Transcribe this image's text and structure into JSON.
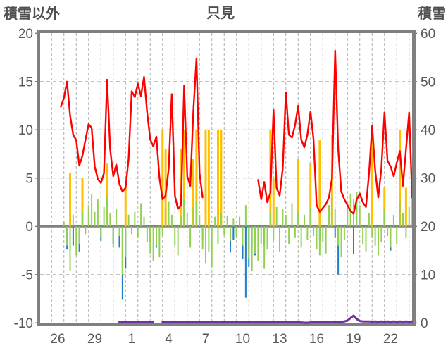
{
  "header": {
    "left_axis_title": "積雪以外",
    "station_title": "只見",
    "right_axis_title": "積雪"
  },
  "chart_data": {
    "type": "line",
    "description": "combo chart: red line + yellow/blue/green bars on left axis, purple snow-depth line on right axis; x in days, t=0 is 00:00 of day 26",
    "x_start": 0.75,
    "x_step": 0.25,
    "x_range": [
      -0.93,
      29.33
    ],
    "x_axis": {
      "tick_labels": [
        "26",
        "29",
        "1",
        "4",
        "7",
        "10",
        "13",
        "16",
        "19",
        "22"
      ],
      "tick_positions": [
        0.5,
        3.5,
        6.5,
        9.5,
        12.5,
        15.5,
        18.5,
        21.5,
        24.5,
        27.5
      ],
      "day_gridlines_from": 0,
      "day_gridlines_to": 29,
      "grid": "daily dashed vertical"
    },
    "left_axis": {
      "range": [
        -10,
        20
      ],
      "ticks": [
        20,
        15,
        10,
        5,
        0,
        -5,
        -10
      ],
      "dashed_gridlines_at": [
        15,
        10,
        5,
        -5
      ],
      "zero_line": "solid gray"
    },
    "right_axis": {
      "range": [
        0,
        60
      ],
      "ticks": [
        60,
        50,
        40,
        30,
        20,
        10,
        0
      ]
    },
    "colors": {
      "red": "#FF0000",
      "yellow": "#FFC000",
      "blue": "#1F7EC4",
      "green": "#92D050",
      "purple": "#7030A0",
      "frame": "#808080",
      "gridline": "#ADADAD",
      "text": "#595959"
    },
    "series": [
      {
        "name": "yellow-bars",
        "type": "bar",
        "axis": "left",
        "color": "#FFC000",
        "values": [
          0,
          0,
          0,
          5.5,
          0,
          0,
          0,
          5.0,
          0,
          0,
          0,
          0,
          0,
          0,
          0,
          6.5,
          0,
          0,
          0,
          0,
          0,
          4.0,
          0,
          0,
          0,
          0,
          0,
          0,
          0,
          0,
          0,
          0,
          0,
          10,
          8,
          0,
          0,
          0,
          0,
          8,
          10,
          0,
          0,
          7,
          10,
          0,
          0,
          10,
          10,
          0,
          0,
          10,
          10,
          0,
          0,
          0,
          0,
          0,
          0,
          0,
          0,
          0,
          0,
          0,
          0,
          0,
          0,
          0,
          10,
          5,
          0,
          0,
          0,
          0,
          0,
          0,
          0,
          7,
          0,
          0,
          0,
          6.5,
          0,
          0,
          9,
          0,
          0,
          0,
          9.5,
          0,
          0,
          0,
          0,
          0,
          0,
          0,
          0,
          0,
          0,
          0,
          0,
          10,
          0,
          0,
          0,
          4,
          0,
          0,
          0,
          0,
          10,
          0,
          4,
          0,
          0
        ]
      },
      {
        "name": "blue-bars",
        "type": "bar",
        "axis": "left",
        "color": "#1F7EC4",
        "values": [
          0,
          0,
          -2.4,
          -3.6,
          -2.0,
          0,
          -2.6,
          0,
          0,
          0,
          0,
          0,
          0,
          -1.5,
          0,
          0,
          0,
          -1.8,
          0,
          -2.2,
          -7.6,
          -4.4,
          0,
          0,
          0,
          0,
          0,
          0,
          0,
          -1.6,
          0,
          -2.2,
          0,
          0,
          0,
          0,
          0,
          0,
          0,
          0,
          0,
          0,
          0,
          0,
          0,
          0,
          -1.4,
          0,
          0,
          0,
          0,
          -1.2,
          0,
          0,
          0,
          -2.7,
          -1.4,
          -1.0,
          0,
          -3.4,
          -7.4,
          -4.2,
          -2.4,
          -3.0,
          0,
          0,
          -2.0,
          0,
          0,
          0,
          0,
          -1.6,
          0,
          0,
          0,
          0,
          0,
          0,
          0,
          0,
          0,
          0,
          0,
          0,
          -1.5,
          0,
          0,
          0,
          0,
          -1.2,
          -5.0,
          -2.5,
          0,
          0,
          0,
          -2.9,
          0,
          0,
          0,
          0,
          0,
          0,
          0,
          0,
          0,
          0,
          0,
          -2.5,
          0,
          0,
          0,
          0,
          0,
          0,
          0
        ]
      },
      {
        "name": "green-bars",
        "type": "bar",
        "axis": "left",
        "color": "#92D050",
        "values": [
          0,
          0.5,
          -2.0,
          -4.6,
          1.2,
          -3.0,
          -1.8,
          1.5,
          -0.8,
          2.2,
          3.3,
          1.5,
          2.8,
          -1.2,
          2.0,
          3.1,
          1.4,
          -2.2,
          1.8,
          -1.0,
          -5.0,
          -3.2,
          1.2,
          -0.8,
          1.5,
          -1.2,
          2.4,
          1.0,
          -1.6,
          -2.8,
          -3.6,
          -2.0,
          -3.2,
          -1.0,
          1.8,
          2.6,
          1.2,
          -2.0,
          -3.0,
          1.0,
          2.8,
          1.4,
          -2.2,
          2.0,
          2.6,
          1.2,
          -2.4,
          -3.8,
          -2.6,
          -4.2,
          1.0,
          -1.8,
          1.4,
          -0.9,
          1.1,
          -1.5,
          0.8,
          -1.2,
          1.0,
          -2.0,
          2.2,
          -3.4,
          -4.6,
          -2.8,
          -3.6,
          -1.8,
          -4.4,
          -2.4,
          1.6,
          -1.4,
          2.0,
          -2.6,
          1.8,
          1.2,
          -1.8,
          2.4,
          -1.2,
          1.6,
          -2.2,
          1.2,
          -1.4,
          2.0,
          -1.0,
          -2.4,
          -3.0,
          -1.6,
          -2.8,
          2.2,
          3.0,
          1.8,
          -2.0,
          -3.2,
          -1.4,
          2.6,
          3.4,
          2.8,
          3.6,
          2.2,
          -1.8,
          -2.6,
          1.4,
          -1.2,
          -2.0,
          -3.0,
          -1.6,
          1.8,
          -1.0,
          -2.2,
          1.2,
          -1.8,
          2.6,
          1.4,
          -1.2,
          2.0,
          3.2
        ]
      },
      {
        "name": "red-line",
        "type": "line",
        "axis": "left",
        "color": "#FF0000",
        "values": [
          12.4,
          13.3,
          15.0,
          11.5,
          9.5,
          8.9,
          6.3,
          7.3,
          9.0,
          10.6,
          10.2,
          6.2,
          4.9,
          4.5,
          5.5,
          15.2,
          8.0,
          5.2,
          6.4,
          4.4,
          3.6,
          4.0,
          7.0,
          14.0,
          13.4,
          14.8,
          13.5,
          15.5,
          11.8,
          9.0,
          8.3,
          9.3,
          5.0,
          2.8,
          3.2,
          6.0,
          13.7,
          3.2,
          1.8,
          2.2,
          14.6,
          5.2,
          4.2,
          12.0,
          17.4,
          5.5,
          3.0,
          null,
          null,
          null,
          null,
          null,
          null,
          null,
          null,
          null,
          null,
          null,
          null,
          null,
          null,
          null,
          null,
          null,
          4.8,
          2.8,
          4.6,
          2.5,
          3.5,
          12.1,
          4.0,
          3.2,
          6.0,
          13.9,
          9.5,
          9.2,
          10.5,
          12.5,
          9.0,
          8.2,
          9.5,
          11.9,
          9.0,
          2.2,
          1.5,
          1.9,
          2.3,
          3.0,
          5.0,
          18.2,
          8.0,
          3.6,
          2.8,
          2.2,
          1.6,
          1.3,
          2.8,
          3.4,
          2.5,
          2.0,
          5.5,
          10.4,
          5.8,
          3.0,
          6.0,
          11.8,
          6.8,
          6.2,
          5.2,
          6.6,
          7.8,
          4.2,
          8.0,
          11.8,
          3.0
        ]
      },
      {
        "name": "purple-line",
        "type": "line",
        "axis": "right",
        "color": "#7030A0",
        "values": [
          null,
          null,
          null,
          null,
          null,
          null,
          null,
          null,
          null,
          null,
          null,
          null,
          null,
          null,
          null,
          null,
          null,
          null,
          null,
          0.2,
          0.25,
          0.2,
          0.25,
          0.2,
          0.2,
          0.25,
          0.2,
          0.25,
          0.2,
          0.25,
          0.2,
          null,
          null,
          0.2,
          0.25,
          0.2,
          0.25,
          0.2,
          0.25,
          0.2,
          0.25,
          0.2,
          0.25,
          0.2,
          0.25,
          0.2,
          0.25,
          0.2,
          0.25,
          0.2,
          0.25,
          0.2,
          0.25,
          0.2,
          0.25,
          0.2,
          0.25,
          0.2,
          0.25,
          0.2,
          0.25,
          0.2,
          0.25,
          0.2,
          0.25,
          0.2,
          0.25,
          0.2,
          0.25,
          0.2,
          0.25,
          0.2,
          0.25,
          0.2,
          0.25,
          0.2,
          0.25,
          0.2,
          0.1,
          0.05,
          0.05,
          0.1,
          0.2,
          0.25,
          0.2,
          0.25,
          0.2,
          0.25,
          0.2,
          0.25,
          0.2,
          0.25,
          0.3,
          0.5,
          1.0,
          1.5,
          0.8,
          0.4,
          0.3,
          0.3,
          0.3,
          0.25,
          0.3,
          0.25,
          0.3,
          0.25,
          0.3,
          0.25,
          0.3,
          0.25,
          0.3,
          0.25,
          0.3,
          0.25,
          0.3
        ]
      }
    ]
  }
}
